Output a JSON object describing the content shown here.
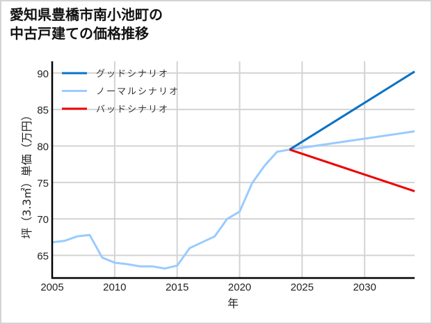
{
  "title": {
    "line1": "愛知県豊橋市南小池町の",
    "line2": "中古戸建ての価格推移"
  },
  "chart_data": {
    "type": "line",
    "title": "愛知県豊橋市南小池町の中古戸建ての価格推移",
    "xlabel": "年",
    "ylabel": "坪（3.3㎡）単価（万円）",
    "xlim": [
      2005,
      2034
    ],
    "ylim": [
      61.9,
      91.6
    ],
    "xticks": [
      2005,
      2010,
      2015,
      2020,
      2025,
      2030
    ],
    "yticks": [
      65,
      70,
      75,
      80,
      85,
      90
    ],
    "grid": true,
    "legend_position": "upper left",
    "series": [
      {
        "name": "グッドシナリオ",
        "color": "#0a72c4",
        "x": [
          2024,
          2034
        ],
        "values": [
          79.5,
          90.2
        ]
      },
      {
        "name": "ノーマルシナリオ",
        "color": "#99cbff",
        "x": [
          2005,
          2006,
          2007,
          2008,
          2009,
          2010,
          2011,
          2012,
          2013,
          2014,
          2015,
          2016,
          2017,
          2018,
          2019,
          2020,
          2021,
          2022,
          2023,
          2024,
          2034
        ],
        "values": [
          66.8,
          67.0,
          67.6,
          67.8,
          64.7,
          64.0,
          63.8,
          63.5,
          63.5,
          63.2,
          63.6,
          66.0,
          66.8,
          67.6,
          70.0,
          71.0,
          74.9,
          77.3,
          79.2,
          79.5,
          82.0
        ]
      },
      {
        "name": "バッドシナリオ",
        "color": "#ee0000",
        "x": [
          2024,
          2034
        ],
        "values": [
          79.5,
          73.8
        ]
      }
    ]
  }
}
